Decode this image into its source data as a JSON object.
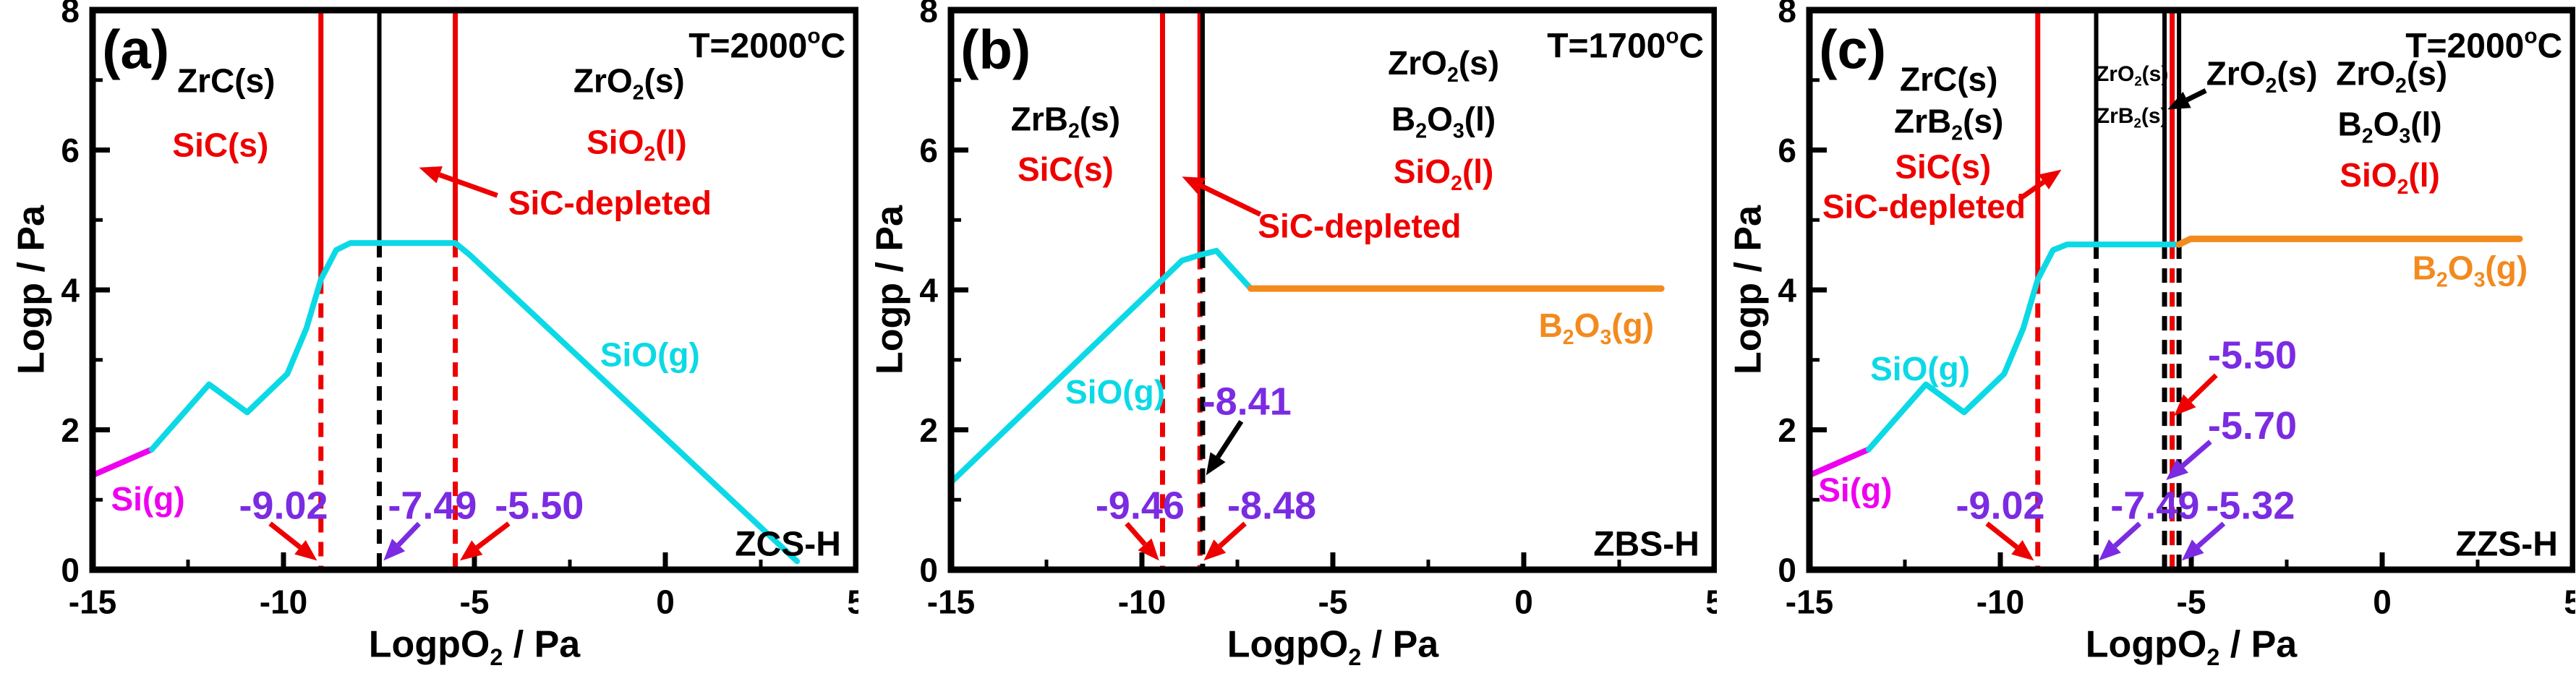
{
  "figure_title": "Volatility phase diagrams",
  "colors": {
    "black": "#000000",
    "red": "#ee0000",
    "cyan": "#0cd9e6",
    "magenta": "#ee00ee",
    "orange": "#f28a1e",
    "purple": "#7b2be2",
    "background": "#ffffff"
  },
  "chart_data": [
    {
      "id": "a",
      "type": "line",
      "letter": "(a)",
      "temperature": "T=2000^oC",
      "sample_tag": "ZCS-H",
      "x_axis": {
        "label": "LogpO_2 / Pa",
        "range": [
          -15,
          5
        ],
        "major_ticks": [
          -15,
          -10,
          -5,
          0,
          5
        ],
        "minor_ticks": [
          -12.5,
          -7.5,
          -2.5,
          2.5
        ]
      },
      "y_axis": {
        "label": "Logp / Pa",
        "range": [
          0,
          8
        ],
        "major_ticks": [
          0,
          2,
          4,
          6,
          8
        ],
        "minor_ticks": [
          1,
          3,
          5,
          7
        ]
      },
      "phase_boundaries": [
        {
          "x": -9.02,
          "color": "red",
          "solid_above": 4.15
        },
        {
          "x": -7.49,
          "color": "black",
          "solid_above": 4.67
        },
        {
          "x": -5.5,
          "color": "red",
          "solid_above": 4.67
        }
      ],
      "series": [
        {
          "name": "Si(g)",
          "color": "magenta",
          "points": [
            [
              -15,
              1.35
            ],
            [
              -13.45,
              1.72
            ]
          ]
        },
        {
          "name": "SiO(g)",
          "color": "cyan",
          "points": [
            [
              -13.45,
              1.72
            ],
            [
              -11.95,
              2.65
            ],
            [
              -10.95,
              2.25
            ],
            [
              -9.9,
              2.8
            ],
            [
              -9.4,
              3.45
            ],
            [
              -9.02,
              4.15
            ],
            [
              -8.62,
              4.57
            ],
            [
              -8.25,
              4.67
            ],
            [
              -5.5,
              4.67
            ],
            [
              -5.12,
              4.5
            ],
            [
              3.45,
              0.12
            ]
          ]
        }
      ],
      "annotations": [
        {
          "text": "(a)",
          "color": "black",
          "x": -14.75,
          "y": 7.45,
          "size": 76,
          "anchor": "start"
        },
        {
          "text": "T=2000^oC",
          "color": "black",
          "x": 4.72,
          "y": 7.5,
          "size": 48,
          "anchor": "end"
        },
        {
          "text": "ZrC(s)",
          "color": "black",
          "x": -11.5,
          "y": 7.0,
          "size": 46,
          "anchor": "middle"
        },
        {
          "text": "SiC(s)",
          "color": "red",
          "x": -11.65,
          "y": 6.08,
          "size": 46,
          "anchor": "middle"
        },
        {
          "text": "ZrO_2(s)",
          "color": "black",
          "x": -0.95,
          "y": 7.0,
          "size": 46,
          "anchor": "middle"
        },
        {
          "text": "SiO_2(l)",
          "color": "red",
          "x": -0.75,
          "y": 6.12,
          "size": 46,
          "anchor": "middle"
        },
        {
          "text": "SiC-depleted",
          "color": "red",
          "x": -1.45,
          "y": 5.25,
          "size": 46,
          "anchor": "middle",
          "arrow": {
            "color": "red",
            "from": [
              -4.4,
              5.35
            ],
            "to": [
              -6.45,
              5.75
            ]
          }
        },
        {
          "text": "SiO(g)",
          "color": "cyan",
          "x": -0.4,
          "y": 3.08,
          "size": 46,
          "anchor": "middle"
        },
        {
          "text": "Si(g)",
          "color": "magenta",
          "x": -13.55,
          "y": 1.02,
          "size": 46,
          "anchor": "middle"
        },
        {
          "text": "ZCS-H",
          "color": "black",
          "x": 4.6,
          "y": 0.38,
          "size": 48,
          "anchor": "end"
        },
        {
          "text": "-9.02",
          "color": "purple",
          "x": -10.0,
          "y": 0.93,
          "size": 54,
          "anchor": "middle",
          "arrow": {
            "color": "red",
            "from": [
              -10.35,
              0.66
            ],
            "to": [
              -9.12,
              0.13
            ]
          }
        },
        {
          "text": "-7.49",
          "color": "purple",
          "x": -6.1,
          "y": 0.93,
          "size": 54,
          "anchor": "middle",
          "arrow": {
            "color": "purple",
            "from": [
              -6.45,
              0.66
            ],
            "to": [
              -7.38,
              0.13
            ]
          }
        },
        {
          "text": "-5.50",
          "color": "purple",
          "x": -3.3,
          "y": 0.93,
          "size": 54,
          "anchor": "middle",
          "arrow": {
            "color": "red",
            "from": [
              -4.1,
              0.66
            ],
            "to": [
              -5.38,
              0.13
            ]
          }
        }
      ]
    },
    {
      "id": "b",
      "type": "line",
      "letter": "(b)",
      "temperature": "T=1700^oC",
      "sample_tag": "ZBS-H",
      "x_axis": {
        "label": "LogpO_2 / Pa",
        "range": [
          -15,
          5
        ],
        "major_ticks": [
          -15,
          -10,
          -5,
          0,
          5
        ],
        "minor_ticks": [
          -12.5,
          -7.5,
          -2.5,
          2.5
        ]
      },
      "y_axis": {
        "label": "Logp / Pa",
        "range": [
          0,
          8
        ],
        "major_ticks": [
          0,
          2,
          4,
          6,
          8
        ],
        "minor_ticks": [
          1,
          3,
          5,
          7
        ]
      },
      "phase_boundaries": [
        {
          "x": -9.46,
          "color": "red",
          "solid_above": 4.15
        },
        {
          "x": -8.48,
          "color": "red",
          "solid_above": 4.5
        },
        {
          "x": -8.41,
          "color": "black",
          "solid_above": 4.52
        }
      ],
      "series": [
        {
          "name": "SiO(g)",
          "color": "cyan",
          "points": [
            [
              -15,
              1.25
            ],
            [
              -9.46,
              4.15
            ],
            [
              -8.95,
              4.42
            ],
            [
              -8.48,
              4.5
            ],
            [
              -8.05,
              4.56
            ],
            [
              -7.15,
              4.02
            ]
          ]
        },
        {
          "name": "B_2O_3(g)",
          "color": "orange",
          "points": [
            [
              -7.15,
              4.02
            ],
            [
              3.6,
              4.02
            ]
          ]
        }
      ],
      "annotations": [
        {
          "text": "(b)",
          "color": "black",
          "x": -14.75,
          "y": 7.45,
          "size": 76,
          "anchor": "start"
        },
        {
          "text": "T=1700^oC",
          "color": "black",
          "x": 4.72,
          "y": 7.5,
          "size": 48,
          "anchor": "end"
        },
        {
          "text": "ZrB_2(s)",
          "color": "black",
          "x": -12.0,
          "y": 6.45,
          "size": 46,
          "anchor": "middle"
        },
        {
          "text": "SiC(s)",
          "color": "red",
          "x": -12.0,
          "y": 5.73,
          "size": 46,
          "anchor": "middle"
        },
        {
          "text": "ZrO_2(s)",
          "color": "black",
          "x": -2.1,
          "y": 7.25,
          "size": 46,
          "anchor": "middle"
        },
        {
          "text": "B_2O_3(l)",
          "color": "black",
          "x": -2.1,
          "y": 6.45,
          "size": 46,
          "anchor": "middle"
        },
        {
          "text": "SiO_2(l)",
          "color": "red",
          "x": -2.1,
          "y": 5.7,
          "size": 46,
          "anchor": "middle"
        },
        {
          "text": "SiC-depleted",
          "color": "red",
          "x": -4.3,
          "y": 4.92,
          "size": 46,
          "anchor": "middle",
          "arrow": {
            "color": "red",
            "from": [
              -6.9,
              5.08
            ],
            "to": [
              -8.95,
              5.62
            ]
          }
        },
        {
          "text": "SiO(g)",
          "color": "cyan",
          "x": -10.7,
          "y": 2.55,
          "size": 46,
          "anchor": "middle"
        },
        {
          "text": "B_2O_3(g)",
          "color": "orange",
          "x": 1.9,
          "y": 3.5,
          "size": 46,
          "anchor": "middle"
        },
        {
          "text": "ZBS-H",
          "color": "black",
          "x": 4.6,
          "y": 0.38,
          "size": 48,
          "anchor": "end"
        },
        {
          "text": "-9.46",
          "color": "purple",
          "x": -10.05,
          "y": 0.93,
          "size": 54,
          "anchor": "middle",
          "arrow": {
            "color": "red",
            "from": [
              -10.4,
              0.66
            ],
            "to": [
              -9.55,
              0.13
            ]
          }
        },
        {
          "text": "-8.48",
          "color": "purple",
          "x": -6.6,
          "y": 0.93,
          "size": 54,
          "anchor": "middle",
          "arrow": {
            "color": "red",
            "from": [
              -7.3,
              0.66
            ],
            "to": [
              -8.38,
              0.13
            ]
          }
        },
        {
          "text": "-8.41",
          "color": "purple",
          "x": -7.25,
          "y": 2.42,
          "size": 54,
          "anchor": "middle",
          "arrow": {
            "color": "black",
            "from": [
              -7.4,
              2.12
            ],
            "to": [
              -8.32,
              1.35
            ]
          }
        }
      ]
    },
    {
      "id": "c",
      "type": "line",
      "letter": "(c)",
      "temperature": "T=2000^oC",
      "sample_tag": "ZZS-H",
      "x_axis": {
        "label": "LogpO_2 / Pa",
        "range": [
          -15,
          5
        ],
        "major_ticks": [
          -15,
          -10,
          -5,
          0,
          5
        ],
        "minor_ticks": [
          -12.5,
          -7.5,
          -2.5,
          2.5
        ]
      },
      "y_axis": {
        "label": "Logp / Pa",
        "range": [
          0,
          8
        ],
        "major_ticks": [
          0,
          2,
          4,
          6,
          8
        ],
        "minor_ticks": [
          1,
          3,
          5,
          7
        ]
      },
      "phase_boundaries": [
        {
          "x": -9.02,
          "color": "red",
          "solid_above": 4.15
        },
        {
          "x": -7.49,
          "color": "black",
          "solid_above": 4.65
        },
        {
          "x": -5.7,
          "color": "black",
          "solid_above": 4.65
        },
        {
          "x": -5.5,
          "color": "red",
          "solid_above": 4.65
        },
        {
          "x": -5.32,
          "color": "black",
          "solid_above": 4.65
        }
      ],
      "series": [
        {
          "name": "Si(g)",
          "color": "magenta",
          "points": [
            [
              -15,
              1.35
            ],
            [
              -13.45,
              1.72
            ]
          ]
        },
        {
          "name": "SiO(g)",
          "color": "cyan",
          "points": [
            [
              -13.45,
              1.72
            ],
            [
              -11.95,
              2.65
            ],
            [
              -10.95,
              2.25
            ],
            [
              -9.9,
              2.8
            ],
            [
              -9.4,
              3.45
            ],
            [
              -9.02,
              4.15
            ],
            [
              -8.62,
              4.57
            ],
            [
              -8.25,
              4.65
            ],
            [
              -5.32,
              4.65
            ]
          ]
        },
        {
          "name": "B_2O_3(g)",
          "color": "orange",
          "points": [
            [
              -5.32,
              4.65
            ],
            [
              -5.02,
              4.73
            ],
            [
              3.6,
              4.73
            ]
          ]
        }
      ],
      "annotations": [
        {
          "text": "(c)",
          "color": "black",
          "x": -14.75,
          "y": 7.45,
          "size": 76,
          "anchor": "start"
        },
        {
          "text": "T=2000^oC",
          "color": "black",
          "x": 4.72,
          "y": 7.5,
          "size": 48,
          "anchor": "end"
        },
        {
          "text": "ZrC(s)",
          "color": "black",
          "x": -11.35,
          "y": 7.02,
          "size": 46,
          "anchor": "middle"
        },
        {
          "text": "ZrB_2(s)",
          "color": "black",
          "x": -11.35,
          "y": 6.42,
          "size": 46,
          "anchor": "middle"
        },
        {
          "text": "SiC(s)",
          "color": "red",
          "x": -11.5,
          "y": 5.77,
          "size": 46,
          "anchor": "middle"
        },
        {
          "text": "SiC-depleted",
          "color": "red",
          "x": -12.0,
          "y": 5.2,
          "size": 46,
          "anchor": "middle",
          "arrow": {
            "color": "red",
            "from": [
              -9.5,
              5.3
            ],
            "to": [
              -8.4,
              5.72
            ]
          }
        },
        {
          "text": "ZrO_2(s)",
          "color": "black",
          "x": -6.55,
          "y": 7.1,
          "size": 30,
          "anchor": "middle"
        },
        {
          "text": "ZrB_2(s)",
          "color": "black",
          "x": -6.55,
          "y": 6.5,
          "size": 30,
          "anchor": "middle"
        },
        {
          "text": "ZrO_2(s)",
          "color": "black",
          "x": -3.15,
          "y": 7.1,
          "size": 46,
          "anchor": "middle",
          "arrow": {
            "color": "black",
            "from": [
              -4.62,
              6.85
            ],
            "to": [
              -5.62,
              6.58
            ]
          }
        },
        {
          "text": "ZrO_2(s)",
          "color": "black",
          "x": 0.25,
          "y": 7.1,
          "size": 46,
          "anchor": "middle"
        },
        {
          "text": "B_2O_3(l)",
          "color": "black",
          "x": 0.2,
          "y": 6.38,
          "size": 46,
          "anchor": "middle"
        },
        {
          "text": "SiO_2(l)",
          "color": "red",
          "x": 0.2,
          "y": 5.65,
          "size": 46,
          "anchor": "middle"
        },
        {
          "text": "SiO(g)",
          "color": "cyan",
          "x": -12.1,
          "y": 2.88,
          "size": 46,
          "anchor": "middle"
        },
        {
          "text": "Si(g)",
          "color": "magenta",
          "x": -13.8,
          "y": 1.15,
          "size": 46,
          "anchor": "middle"
        },
        {
          "text": "B_2O_3(g)",
          "color": "orange",
          "x": 2.3,
          "y": 4.32,
          "size": 46,
          "anchor": "middle"
        },
        {
          "text": "ZZS-H",
          "color": "black",
          "x": 4.6,
          "y": 0.38,
          "size": 48,
          "anchor": "end"
        },
        {
          "text": "-9.02",
          "color": "purple",
          "x": -10.0,
          "y": 0.93,
          "size": 54,
          "anchor": "middle",
          "arrow": {
            "color": "red",
            "from": [
              -10.35,
              0.66
            ],
            "to": [
              -9.12,
              0.13
            ]
          }
        },
        {
          "text": "-7.49",
          "color": "purple",
          "x": -5.95,
          "y": 0.93,
          "size": 54,
          "anchor": "middle",
          "arrow": {
            "color": "purple",
            "from": [
              -6.35,
              0.66
            ],
            "to": [
              -7.42,
              0.13
            ]
          }
        },
        {
          "text": "-5.32",
          "color": "purple",
          "x": -3.45,
          "y": 0.93,
          "size": 54,
          "anchor": "middle",
          "arrow": {
            "color": "purple",
            "from": [
              -4.15,
              0.66
            ],
            "to": [
              -5.25,
              0.13
            ]
          }
        },
        {
          "text": "-5.50",
          "color": "purple",
          "x": -3.4,
          "y": 3.08,
          "size": 54,
          "anchor": "middle",
          "arrow": {
            "color": "red",
            "from": [
              -4.35,
              2.78
            ],
            "to": [
              -5.45,
              2.2
            ]
          }
        },
        {
          "text": "-5.70",
          "color": "purple",
          "x": -3.4,
          "y": 2.07,
          "size": 54,
          "anchor": "middle",
          "arrow": {
            "color": "purple",
            "from": [
              -4.5,
              1.83
            ],
            "to": [
              -5.66,
              1.28
            ]
          }
        }
      ]
    }
  ]
}
